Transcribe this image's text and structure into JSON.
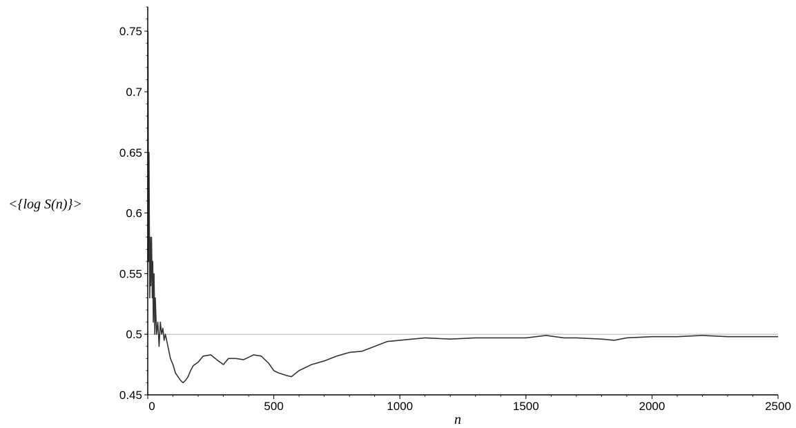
{
  "chart_data": {
    "type": "line",
    "title": "",
    "xlabel": "n",
    "ylabel": "<{log S(n)}>",
    "xlim": [
      0,
      2500
    ],
    "ylim": [
      0.45,
      0.77
    ],
    "x_ticks": [
      0,
      500,
      1000,
      1500,
      2000,
      2500
    ],
    "x_tick_labels": [
      "0",
      "500",
      "1000",
      "1500",
      "2000",
      "2500"
    ],
    "y_ticks": [
      0.45,
      0.5,
      0.55,
      0.6,
      0.65,
      0.7,
      0.75
    ],
    "y_tick_labels": [
      "0.45",
      "0.5",
      "0.55",
      "0.6",
      "0.65",
      "0.7",
      "0.75"
    ],
    "grid": false,
    "reference_line": {
      "y": 0.5,
      "color": "#bbbbbb"
    },
    "series": [
      {
        "color": "#333333",
        "x": [
          1,
          3,
          5,
          8,
          10,
          12,
          15,
          18,
          20,
          22,
          25,
          28,
          30,
          35,
          40,
          45,
          50,
          55,
          60,
          65,
          70,
          80,
          90,
          100,
          110,
          120,
          130,
          140,
          150,
          160,
          170,
          180,
          200,
          220,
          250,
          280,
          300,
          320,
          350,
          380,
          400,
          420,
          450,
          480,
          500,
          520,
          550,
          570,
          600,
          650,
          700,
          750,
          800,
          850,
          900,
          950,
          1000,
          1100,
          1200,
          1300,
          1400,
          1500,
          1580,
          1650,
          1700,
          1800,
          1850,
          1900,
          2000,
          2100,
          2200,
          2300,
          2400,
          2500
        ],
        "y": [
          0.75,
          0.56,
          0.65,
          0.53,
          0.58,
          0.54,
          0.58,
          0.53,
          0.56,
          0.51,
          0.55,
          0.5,
          0.53,
          0.5,
          0.51,
          0.49,
          0.51,
          0.5,
          0.505,
          0.495,
          0.5,
          0.49,
          0.48,
          0.475,
          0.468,
          0.465,
          0.462,
          0.46,
          0.462,
          0.465,
          0.47,
          0.474,
          0.477,
          0.482,
          0.483,
          0.478,
          0.475,
          0.48,
          0.48,
          0.479,
          0.481,
          0.483,
          0.482,
          0.476,
          0.47,
          0.468,
          0.466,
          0.465,
          0.47,
          0.475,
          0.478,
          0.482,
          0.485,
          0.486,
          0.49,
          0.494,
          0.495,
          0.497,
          0.496,
          0.497,
          0.497,
          0.497,
          0.499,
          0.497,
          0.497,
          0.496,
          0.495,
          0.497,
          0.498,
          0.498,
          0.499,
          0.498,
          0.498,
          0.498
        ]
      }
    ]
  }
}
